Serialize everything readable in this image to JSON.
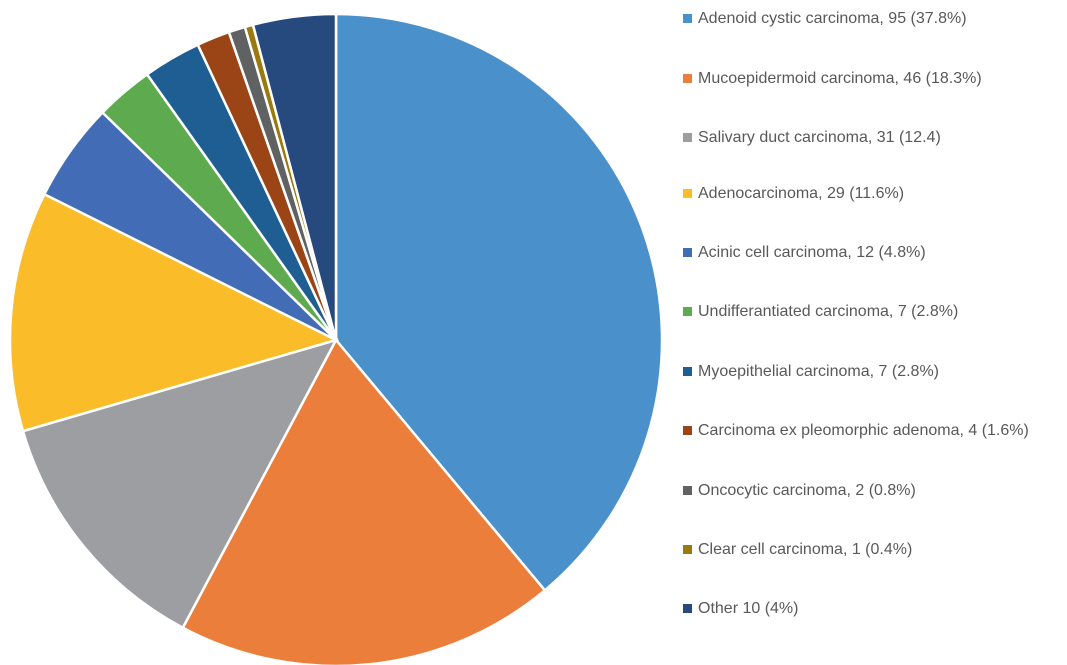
{
  "chart_data": {
    "type": "pie",
    "categories": [
      "Adenoid cystic carcinoma, 95 (37.8%)",
      "Mucoepidermoid carcinoma, 46 (18.3%)",
      "Salivary duct carcinoma, 31 (12.4)",
      "Adenocarcinoma, 29 (11.6%)",
      "Acinic cell carcinoma, 12 (4.8%)",
      "Undifferantiated carcinoma, 7 (2.8%)",
      "Myoepithelial carcinoma, 7 (2.8%)",
      "Carcinoma ex pleomorphic adenoma, 4 (1.6%)",
      "Oncocytic carcinoma, 2 (0.8%)",
      "Clear cell carcinoma, 1 (0.4%)",
      "Other 10 (4%)"
    ],
    "values": [
      95,
      46,
      31,
      29,
      12,
      7,
      7,
      4,
      2,
      1,
      10
    ],
    "colors": [
      "#4A90CA",
      "#EB7E3A",
      "#9C9EA1",
      "#FBBC2A",
      "#426DB6",
      "#5EAA4E",
      "#1E5E92",
      "#9B4516",
      "#5F6163",
      "#9A7A0E",
      "#264A7E"
    ],
    "legend": "right"
  }
}
